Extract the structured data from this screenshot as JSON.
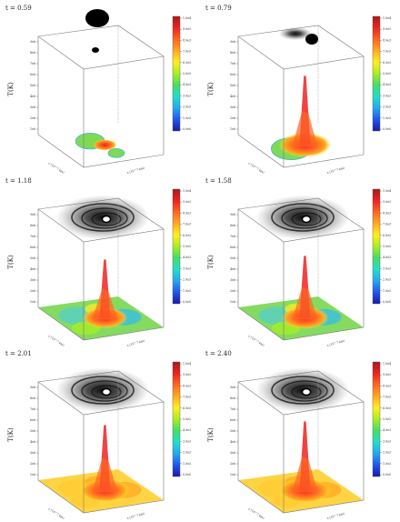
{
  "chart_data": [
    {
      "type": "other",
      "subtype": "3d-surface-with-particle-projection",
      "title": "t = 0.59",
      "zlabel": "T(K)",
      "xlabel": "x (10^7 km)",
      "ylabel": "y (10^7 km)",
      "hot_spot_peak": 0.35,
      "green_level": 0.42,
      "spiral": "blob"
    },
    {
      "type": "other",
      "subtype": "3d-surface-with-particle-projection",
      "title": "t = 0.79",
      "zlabel": "T(K)",
      "xlabel": "x (10^7 km)",
      "ylabel": "y (10^7 km)",
      "hot_spot_peak": 0.95,
      "green_level": 0.4,
      "spiral": "tail"
    },
    {
      "type": "other",
      "subtype": "3d-surface-with-particle-projection",
      "title": "t = 1.18",
      "zlabel": "T(K)",
      "xlabel": "x (10^7 km)",
      "ylabel": "y (10^7 km)",
      "hot_spot_peak": 0.8,
      "green_level": 0.45,
      "spiral": "spiral"
    },
    {
      "type": "other",
      "subtype": "3d-surface-with-particle-projection",
      "title": "t = 1.58",
      "zlabel": "T(K)",
      "xlabel": "x (10^7 km)",
      "ylabel": "y (10^7 km)",
      "hot_spot_peak": 0.85,
      "green_level": 0.48,
      "spiral": "spiral"
    },
    {
      "type": "other",
      "subtype": "3d-surface-with-particle-projection",
      "title": "t = 2.01",
      "zlabel": "T(K)",
      "xlabel": "x (10^7 km)",
      "ylabel": "y (10^7 km)",
      "hot_spot_peak": 0.9,
      "green_level": 0.7,
      "spiral": "spiral"
    },
    {
      "type": "other",
      "subtype": "3d-surface-with-particle-projection",
      "title": "t = 2.40",
      "zlabel": "T(K)",
      "xlabel": "x (10^7 km)",
      "ylabel": "y (10^7 km)",
      "hot_spot_peak": 0.95,
      "green_level": 0.78,
      "spiral": "spiral"
    }
  ],
  "colorbar": {
    "colors": [
      "#1a1aa8",
      "#2255ee",
      "#22aaee",
      "#22ddcc",
      "#44dd66",
      "#aaee22",
      "#ffee22",
      "#ffaa22",
      "#ff6622",
      "#ee2222",
      "#a81a1a"
    ],
    "ticks": [
      "1.0e4",
      "9.0e3",
      "8.0e3",
      "7.0e3",
      "6.0e3",
      "5.0e3",
      "4.0e3",
      "3.0e3",
      "2.0e3",
      "1.0e3",
      "0.0e0"
    ]
  },
  "z_ticks": [
    "9e6",
    "8e6",
    "7e6",
    "6e6",
    "5e6",
    "4e6",
    "3e6",
    "2e6",
    "1e6"
  ]
}
